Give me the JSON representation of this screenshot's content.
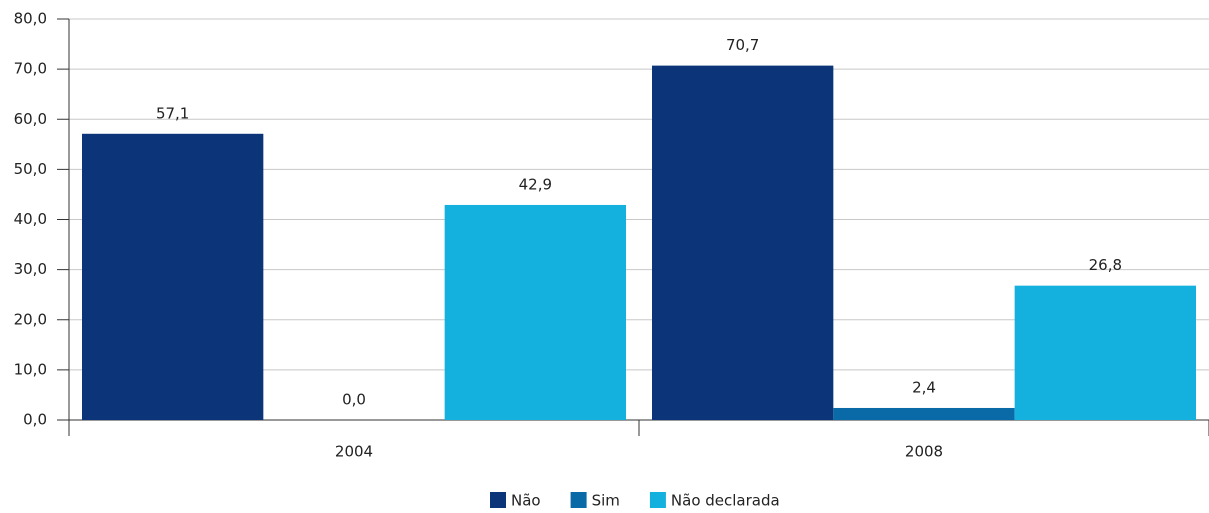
{
  "chart_data": {
    "type": "bar",
    "categories": [
      "2004",
      "2008"
    ],
    "series": [
      {
        "name": "Não",
        "color": "#0b3578",
        "values": [
          57.1,
          70.7
        ],
        "value_labels": [
          "57,1",
          "70,7"
        ]
      },
      {
        "name": "Sim",
        "color": "#0a6aa8",
        "values": [
          0.0,
          2.4
        ],
        "value_labels": [
          "0,0",
          "2,4"
        ]
      },
      {
        "name": "Não declarada",
        "color": "#14b0de",
        "values": [
          42.9,
          26.8
        ],
        "value_labels": [
          "42,9",
          "26,8"
        ]
      }
    ],
    "ylim": [
      0,
      80
    ],
    "yticks": [
      {
        "value": 0,
        "label": "0,0"
      },
      {
        "value": 10,
        "label": "10,0"
      },
      {
        "value": 20,
        "label": "20,0"
      },
      {
        "value": 30,
        "label": "30,0"
      },
      {
        "value": 40,
        "label": "40,0"
      },
      {
        "value": 50,
        "label": "50,0"
      },
      {
        "value": 60,
        "label": "60,0"
      },
      {
        "value": 70,
        "label": "70,0"
      },
      {
        "value": 80,
        "label": "80,0"
      }
    ],
    "grid": true
  }
}
